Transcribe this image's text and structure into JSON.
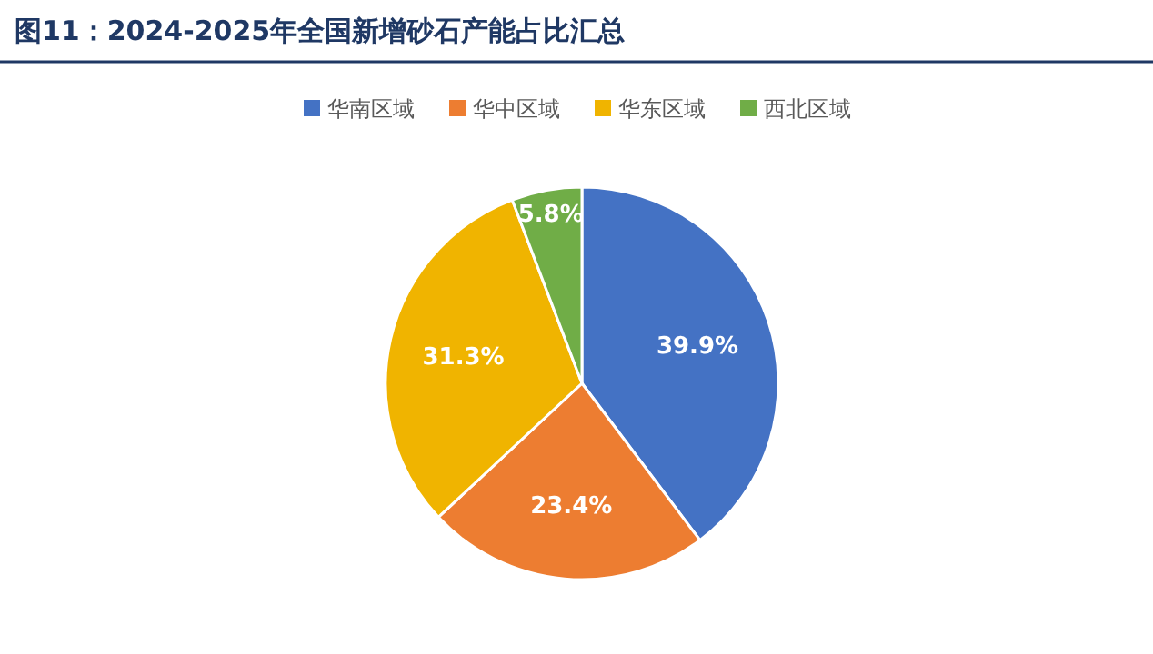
{
  "chart_data": {
    "type": "pie",
    "title": "图11：2024-2025年全国新增砂石产能占比汇总",
    "categories": [
      "华南区域",
      "华中区域",
      "华东区域",
      "西北区域"
    ],
    "values": [
      39.9,
      23.4,
      31.3,
      5.8
    ],
    "colors": [
      "#4472c4",
      "#ed7d31",
      "#f0b400",
      "#70ad47"
    ],
    "value_labels": [
      "39.9%",
      "23.4%",
      "31.3%",
      "5.8%"
    ],
    "legend": "top"
  }
}
